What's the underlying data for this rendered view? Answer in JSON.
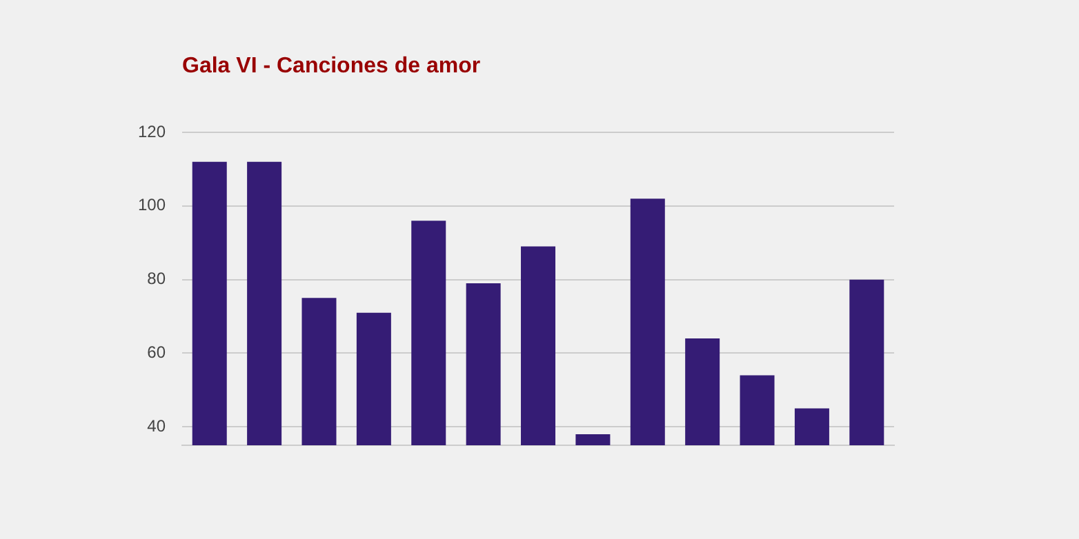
{
  "chart_data": {
    "type": "bar",
    "title": "Gala VI - Canciones de amor",
    "categories": [
      null,
      null,
      null,
      null,
      null,
      null,
      null,
      null,
      null,
      null,
      null,
      null,
      null
    ],
    "values": [
      112,
      112,
      75,
      71,
      96,
      79,
      89,
      38,
      102,
      64,
      54,
      45,
      80
    ],
    "color": "#351c75",
    "ylim": [
      35,
      120
    ],
    "yticks": [
      40,
      60,
      80,
      100,
      120
    ],
    "grid": "y",
    "legend": false
  }
}
